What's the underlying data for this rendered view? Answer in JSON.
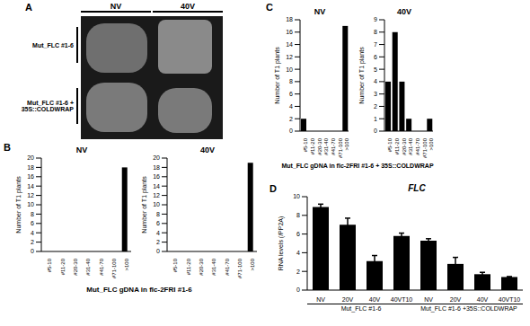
{
  "figure": {
    "A": {
      "label": "A",
      "columns": [
        "NV",
        "40V"
      ],
      "rows": [
        "Mut_FLC #1-6",
        "Mut_FLC #1-6 + 35S::COLDWRAP"
      ]
    },
    "B": {
      "label": "B",
      "caption": "Mut_FLC gDNA in flc-2FRI #1-6"
    },
    "C": {
      "label": "C",
      "caption": "Mut_FLC gDNA in flc-2FRI #1-6 + 35S::COLDWRAP"
    },
    "D": {
      "label": "D"
    }
  },
  "chart_data": [
    {
      "type": "bar",
      "title": "NV",
      "ylabel": "Number of T1 plants",
      "categories": [
        "#5-10",
        "#11-20",
        "#20-30",
        "#31-40",
        "#41-70",
        "#71-100",
        ">100"
      ],
      "values": [
        0,
        0,
        0,
        0,
        0,
        0,
        18
      ],
      "color": "#000000",
      "ylim": [
        0,
        20
      ],
      "yticks": [
        0,
        2,
        4,
        6,
        8,
        10,
        12,
        14,
        16,
        18,
        20
      ]
    },
    {
      "type": "bar",
      "title": "40V",
      "ylabel": "Number of T1 plants",
      "categories": [
        "#5-10",
        "#11-20",
        "#20-30",
        "#31-40",
        "#41-70",
        "#71-100",
        ">100"
      ],
      "values": [
        0,
        0,
        0,
        0,
        0,
        0,
        19
      ],
      "color": "#000000",
      "ylim": [
        0,
        20
      ],
      "yticks": [
        0,
        2,
        4,
        6,
        8,
        10,
        12,
        14,
        16,
        18,
        20
      ]
    },
    {
      "type": "bar",
      "title": "NV",
      "ylabel": "Number of T1 plants",
      "categories": [
        "#5-10",
        "#11-20",
        "#20-30",
        "#31-40",
        "#41-70",
        "#71-100",
        ">100"
      ],
      "values": [
        2,
        0,
        0,
        0,
        0,
        0,
        17
      ],
      "color": "#000000",
      "ylim": [
        0,
        18
      ],
      "yticks": [
        0,
        2,
        4,
        6,
        8,
        10,
        12,
        14,
        16,
        18
      ]
    },
    {
      "type": "bar",
      "title": "40V",
      "ylabel": "Number of T1 plants",
      "categories": [
        "#5-10",
        "#11-20",
        "#20-30",
        "#31-40",
        "#41-70",
        "#71-100",
        ">100"
      ],
      "values": [
        4,
        8,
        4,
        1,
        0,
        0,
        1
      ],
      "color": "#000000",
      "ylim": [
        0,
        9
      ],
      "yticks": [
        0,
        1,
        2,
        3,
        4,
        5,
        6,
        7,
        8,
        9
      ]
    },
    {
      "type": "bar",
      "title": "FLC",
      "ylabel": "RNA levels (/PP2A)",
      "categories": [
        "NV",
        "20V",
        "40V",
        "40VT10",
        "NV",
        "20V",
        "40V",
        "40VT10"
      ],
      "values": [
        8.9,
        7.0,
        3.1,
        5.8,
        5.3,
        2.8,
        1.7,
        1.4
      ],
      "errors": [
        0.3,
        0.7,
        0.6,
        0.3,
        0.2,
        0.7,
        0.2,
        0.05
      ],
      "group_labels": [
        "Mut_FLC #1-6",
        "Mut_FLC #1-6 +35S::COLDWRAP"
      ],
      "color": "#000000",
      "ylim": [
        0,
        10
      ],
      "yticks": [
        0,
        2,
        4,
        6,
        8,
        10
      ]
    }
  ]
}
